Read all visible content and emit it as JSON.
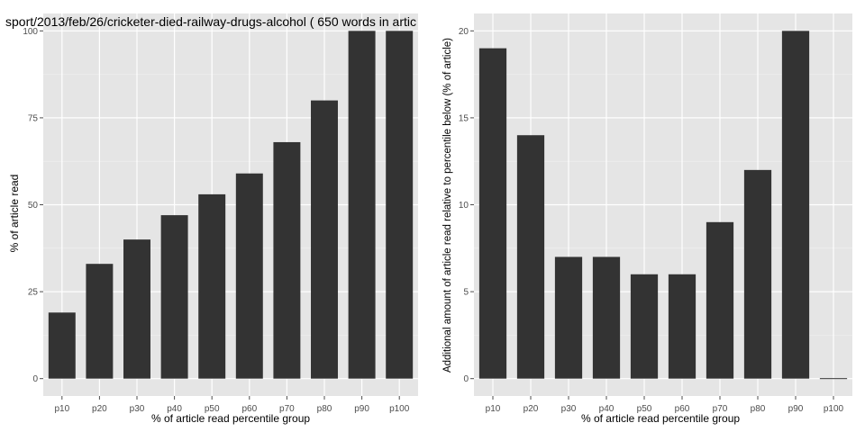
{
  "chart_data": [
    {
      "type": "bar",
      "title": "sport/2013/feb/26/cricketer-died-railway-drugs-alcohol ( 650 words in artic",
      "xlabel": "% of article read percentile group",
      "ylabel": "% of article read",
      "categories": [
        "p10",
        "p20",
        "p30",
        "p40",
        "p50",
        "p60",
        "p70",
        "p80",
        "p90",
        "p100"
      ],
      "values": [
        19,
        33,
        40,
        47,
        53,
        59,
        68,
        80,
        100,
        100
      ],
      "ylim": [
        -5,
        105
      ],
      "yticks": [
        0,
        25,
        50,
        75,
        100
      ],
      "grid": true
    },
    {
      "type": "bar",
      "title": "",
      "xlabel": "% of article read percentile group",
      "ylabel": "Additional amount of article read relative to percentile below (% of article)",
      "categories": [
        "p10",
        "p20",
        "p30",
        "p40",
        "p50",
        "p60",
        "p70",
        "p80",
        "p90",
        "p100"
      ],
      "values": [
        19,
        14,
        7,
        7,
        6,
        6,
        9,
        12,
        20,
        0
      ],
      "ylim": [
        -1,
        21
      ],
      "yticks": [
        0,
        5,
        10,
        15,
        20
      ],
      "grid": true
    }
  ]
}
